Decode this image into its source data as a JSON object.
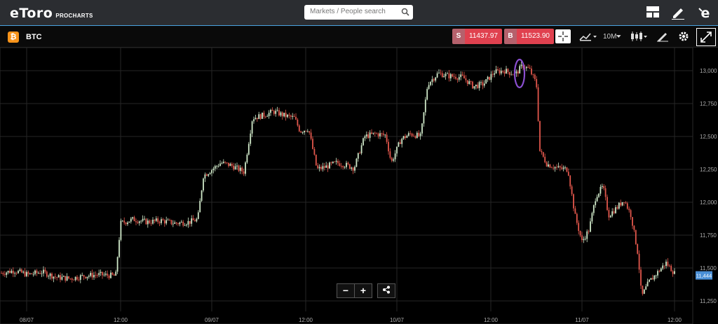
{
  "header": {
    "brand": "eToro",
    "product": "PROCHARTS",
    "search_placeholder": "Markets / People search"
  },
  "instrument": {
    "symbol": "BTC",
    "sell_tag": "S",
    "sell_price": "11437.97",
    "buy_tag": "B",
    "buy_price": "11523.90"
  },
  "toolbar": {
    "interval": "10M"
  },
  "axes": {
    "y_ticks": [
      "13,000",
      "12,750",
      "12,500",
      "12,250",
      "12,000",
      "11,750",
      "11,500",
      "11,250"
    ],
    "x_ticks": [
      "08/07",
      "12:00",
      "09/07",
      "12:00",
      "10/07",
      "12:00",
      "11/07",
      "12:00"
    ],
    "current_price": "11,444"
  },
  "chart_data": {
    "type": "candlestick",
    "ylim": [
      11150,
      13150
    ],
    "y_ticks": [
      13000,
      12750,
      12500,
      12250,
      12000,
      11750,
      11500,
      11250
    ],
    "x_tick_labels": [
      "08/07",
      "12:00",
      "09/07",
      "12:00",
      "10/07",
      "12:00",
      "11/07",
      "12:00"
    ],
    "current_price": 11444,
    "price_path": [
      [
        0,
        11460
      ],
      [
        20,
        11480
      ],
      [
        40,
        11450
      ],
      [
        60,
        11470
      ],
      [
        80,
        11430
      ],
      [
        100,
        11420
      ],
      [
        120,
        11440
      ],
      [
        140,
        11450
      ],
      [
        165,
        11440
      ],
      [
        172,
        11840
      ],
      [
        190,
        11870
      ],
      [
        210,
        11850
      ],
      [
        230,
        11860
      ],
      [
        250,
        11840
      ],
      [
        270,
        11850
      ],
      [
        282,
        11870
      ],
      [
        290,
        12200
      ],
      [
        300,
        12240
      ],
      [
        315,
        12300
      ],
      [
        330,
        12280
      ],
      [
        348,
        12230
      ],
      [
        360,
        12640
      ],
      [
        375,
        12660
      ],
      [
        390,
        12690
      ],
      [
        405,
        12660
      ],
      [
        420,
        12640
      ],
      [
        428,
        12540
      ],
      [
        440,
        12560
      ],
      [
        452,
        12250
      ],
      [
        465,
        12270
      ],
      [
        480,
        12300
      ],
      [
        495,
        12280
      ],
      [
        505,
        12260
      ],
      [
        520,
        12500
      ],
      [
        535,
        12520
      ],
      [
        550,
        12510
      ],
      [
        558,
        12300
      ],
      [
        572,
        12480
      ],
      [
        585,
        12520
      ],
      [
        600,
        12500
      ],
      [
        610,
        12900
      ],
      [
        625,
        12980
      ],
      [
        640,
        12960
      ],
      [
        660,
        12950
      ],
      [
        675,
        12880
      ],
      [
        690,
        12900
      ],
      [
        705,
        12990
      ],
      [
        720,
        13000
      ],
      [
        735,
        12970
      ],
      [
        745,
        13040
      ],
      [
        755,
        13010
      ],
      [
        765,
        12900
      ],
      [
        770,
        12390
      ],
      [
        780,
        12290
      ],
      [
        795,
        12260
      ],
      [
        810,
        12250
      ],
      [
        820,
        11900
      ],
      [
        830,
        11700
      ],
      [
        840,
        11790
      ],
      [
        850,
        12050
      ],
      [
        860,
        12120
      ],
      [
        868,
        11900
      ],
      [
        880,
        11960
      ],
      [
        890,
        12020
      ],
      [
        900,
        11900
      ],
      [
        910,
        11600
      ],
      [
        915,
        11280
      ],
      [
        925,
        11390
      ],
      [
        935,
        11450
      ],
      [
        950,
        11540
      ],
      [
        962,
        11460
      ]
    ],
    "annotation": "purple ellipse around the peak near 13,000"
  },
  "zoom_controls": {
    "minus": "−",
    "plus": "+"
  }
}
